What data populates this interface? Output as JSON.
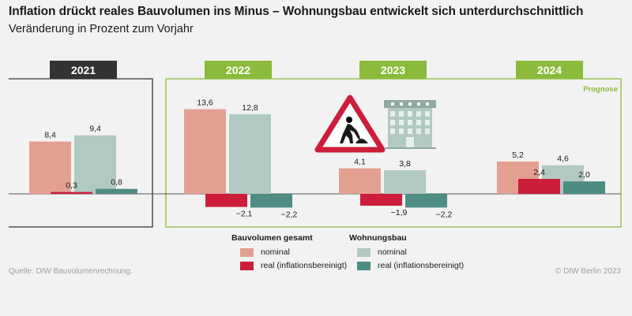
{
  "title": "Inflation drückt reales Bauvolumen ins Minus – Wohnungsbau entwickelt sich unterdurchschnittlich",
  "subtitle": "Veränderung in Prozent zum Vorjahr",
  "source": "Quelle: DIW Bauvolumenrechnung.",
  "copyright": "© DIW Berlin 2023",
  "forecast_label": "Prognose",
  "colors": {
    "bau_nominal": "#e3a091",
    "bau_real": "#cc1d3a",
    "wohn_nominal": "#b2c8c2",
    "wohn_real": "#4e8c84",
    "year_dark": "#333333",
    "year_green": "#8cbb3c",
    "frame_green": "#8cbb3c"
  },
  "icons": [
    "road-works-sign-icon",
    "apartment-building-icon"
  ],
  "legend": {
    "group1": {
      "title": "Bauvolumen gesamt",
      "items": [
        {
          "label": "nominal",
          "color_key": "bau_nominal"
        },
        {
          "label": "real (inflationsbereinigt)",
          "color_key": "bau_real"
        }
      ]
    },
    "group2": {
      "title": "Wohnungsbau",
      "items": [
        {
          "label": "nominal",
          "color_key": "wohn_nominal"
        },
        {
          "label": "real (inflationsbereinigt)",
          "color_key": "wohn_real"
        }
      ]
    }
  },
  "chart_data": {
    "type": "bar",
    "categories": [
      "2021",
      "2022",
      "2023",
      "2024"
    ],
    "series": [
      {
        "name": "Bauvolumen gesamt nominal",
        "values": [
          8.4,
          13.6,
          4.1,
          5.2
        ],
        "labels": [
          "8,4",
          "13,6",
          "4,1",
          "5,2"
        ]
      },
      {
        "name": "Bauvolumen gesamt real (inflationsbereinigt)",
        "values": [
          0.3,
          -2.1,
          -1.9,
          2.4
        ],
        "labels": [
          "0,3",
          "−2,1",
          "−1,9",
          "2,4"
        ]
      },
      {
        "name": "Wohnungsbau nominal",
        "values": [
          9.4,
          12.8,
          3.8,
          4.6
        ],
        "labels": [
          "9,4",
          "12,8",
          "3,8",
          "4,6"
        ]
      },
      {
        "name": "Wohnungsbau real (inflationsbereinigt)",
        "values": [
          0.8,
          -2.2,
          -2.2,
          2.0
        ],
        "labels": [
          "0,8",
          "−2,2",
          "−2,2",
          "2,0"
        ]
      }
    ],
    "forecast_categories": [
      "2022",
      "2023",
      "2024"
    ]
  }
}
